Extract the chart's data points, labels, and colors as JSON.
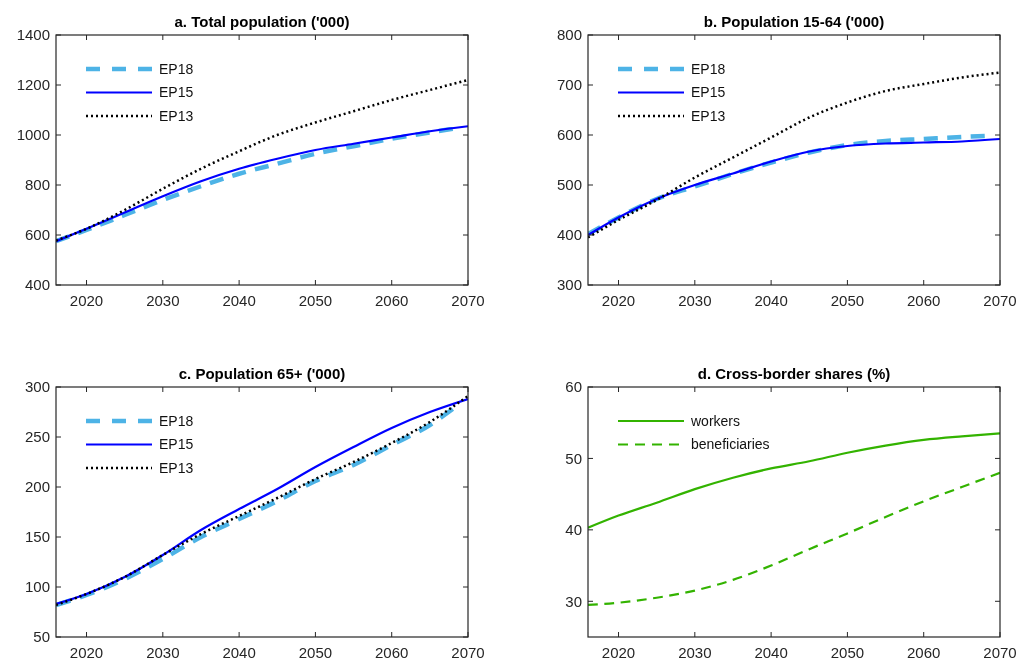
{
  "chart_data": [
    {
      "type": "line",
      "title": "a. Total population ('000)",
      "x": [
        2016,
        2020,
        2025,
        2030,
        2035,
        2040,
        2045,
        2050,
        2055,
        2060,
        2065,
        2070
      ],
      "xlim": [
        2016,
        2070
      ],
      "xticks": [
        2020,
        2030,
        2040,
        2050,
        2060,
        2070
      ],
      "ylim": [
        400,
        1400
      ],
      "yticks": [
        400,
        600,
        800,
        1000,
        1200,
        1400
      ],
      "legend": "top left",
      "grid": false,
      "series": [
        {
          "name": "EP18",
          "color": "#4db3e6",
          "line_style": "dashed",
          "x": [
            2016,
            2020,
            2025,
            2030,
            2035,
            2040,
            2045,
            2050,
            2055,
            2060,
            2065,
            2068
          ],
          "values": [
            575,
            620,
            680,
            740,
            795,
            845,
            885,
            925,
            955,
            985,
            1010,
            1025
          ]
        },
        {
          "name": "EP15",
          "color": "#0000ff",
          "line_style": "solid",
          "values": [
            575,
            625,
            690,
            755,
            815,
            865,
            905,
            940,
            965,
            990,
            1015,
            1035
          ]
        },
        {
          "name": "EP13",
          "color": "#000000",
          "line_style": "dotted",
          "values": [
            578,
            625,
            700,
            785,
            865,
            935,
            1000,
            1050,
            1095,
            1140,
            1180,
            1220
          ]
        }
      ]
    },
    {
      "type": "line",
      "title": "b. Population 15-64 ('000)",
      "x": [
        2016,
        2020,
        2025,
        2030,
        2035,
        2040,
        2045,
        2050,
        2055,
        2060,
        2065,
        2070
      ],
      "xlim": [
        2016,
        2070
      ],
      "xticks": [
        2020,
        2030,
        2040,
        2050,
        2060,
        2070
      ],
      "ylim": [
        300,
        800
      ],
      "yticks": [
        300,
        400,
        500,
        600,
        700,
        800
      ],
      "legend": "top left",
      "grid": false,
      "series": [
        {
          "name": "EP18",
          "color": "#4db3e6",
          "line_style": "dashed",
          "x": [
            2016,
            2020,
            2025,
            2030,
            2035,
            2040,
            2045,
            2050,
            2055,
            2060,
            2065,
            2068
          ],
          "values": [
            402,
            435,
            472,
            497,
            522,
            545,
            565,
            580,
            588,
            592,
            596,
            598
          ]
        },
        {
          "name": "EP15",
          "color": "#0000ff",
          "line_style": "solid",
          "values": [
            400,
            435,
            472,
            500,
            523,
            547,
            567,
            578,
            583,
            585,
            587,
            592
          ]
        },
        {
          "name": "EP13",
          "color": "#000000",
          "line_style": "dotted",
          "values": [
            395,
            430,
            470,
            515,
            555,
            595,
            635,
            665,
            688,
            702,
            715,
            725
          ]
        }
      ]
    },
    {
      "type": "line",
      "title": "c. Population 65+ ('000)",
      "x": [
        2016,
        2020,
        2025,
        2030,
        2035,
        2040,
        2045,
        2050,
        2055,
        2060,
        2065,
        2070
      ],
      "xlim": [
        2016,
        2070
      ],
      "xticks": [
        2020,
        2030,
        2040,
        2050,
        2060,
        2070
      ],
      "ylim": [
        50,
        300
      ],
      "yticks": [
        50,
        100,
        150,
        200,
        250,
        300
      ],
      "legend": "top left",
      "grid": false,
      "series": [
        {
          "name": "EP18",
          "color": "#4db3e6",
          "line_style": "dashed",
          "x": [
            2016,
            2020,
            2025,
            2030,
            2035,
            2040,
            2045,
            2050,
            2055,
            2060,
            2065,
            2068
          ],
          "values": [
            82,
            92,
            108,
            128,
            150,
            168,
            186,
            206,
            222,
            242,
            262,
            278
          ]
        },
        {
          "name": "EP15",
          "color": "#0000ff",
          "line_style": "solid",
          "values": [
            83,
            93,
            110,
            132,
            157,
            178,
            198,
            220,
            240,
            259,
            275,
            288
          ]
        },
        {
          "name": "EP13",
          "color": "#000000",
          "line_style": "dotted",
          "values": [
            82,
            93,
            110,
            132,
            153,
            171,
            189,
            208,
            225,
            244,
            265,
            291
          ]
        }
      ]
    },
    {
      "type": "line",
      "title": "d. Cross-border shares (%)",
      "x": [
        2016,
        2020,
        2025,
        2030,
        2035,
        2040,
        2045,
        2050,
        2055,
        2060,
        2065,
        2070
      ],
      "xlim": [
        2016,
        2070
      ],
      "xticks": [
        2020,
        2030,
        2040,
        2050,
        2060,
        2070
      ],
      "ylim": [
        25,
        60
      ],
      "yticks": [
        30,
        40,
        50,
        60
      ],
      "legend": "top left",
      "grid": false,
      "series": [
        {
          "name": "workers",
          "color": "#33b300",
          "line_style": "solid",
          "values": [
            40.3,
            42,
            43.8,
            45.7,
            47.3,
            48.6,
            49.6,
            50.8,
            51.8,
            52.6,
            53.1,
            53.5
          ]
        },
        {
          "name": "beneficiaries",
          "color": "#33b300",
          "line_style": "dashed",
          "values": [
            29.5,
            29.8,
            30.5,
            31.5,
            33,
            35,
            37.3,
            39.5,
            41.8,
            44,
            46,
            48
          ]
        }
      ]
    }
  ]
}
